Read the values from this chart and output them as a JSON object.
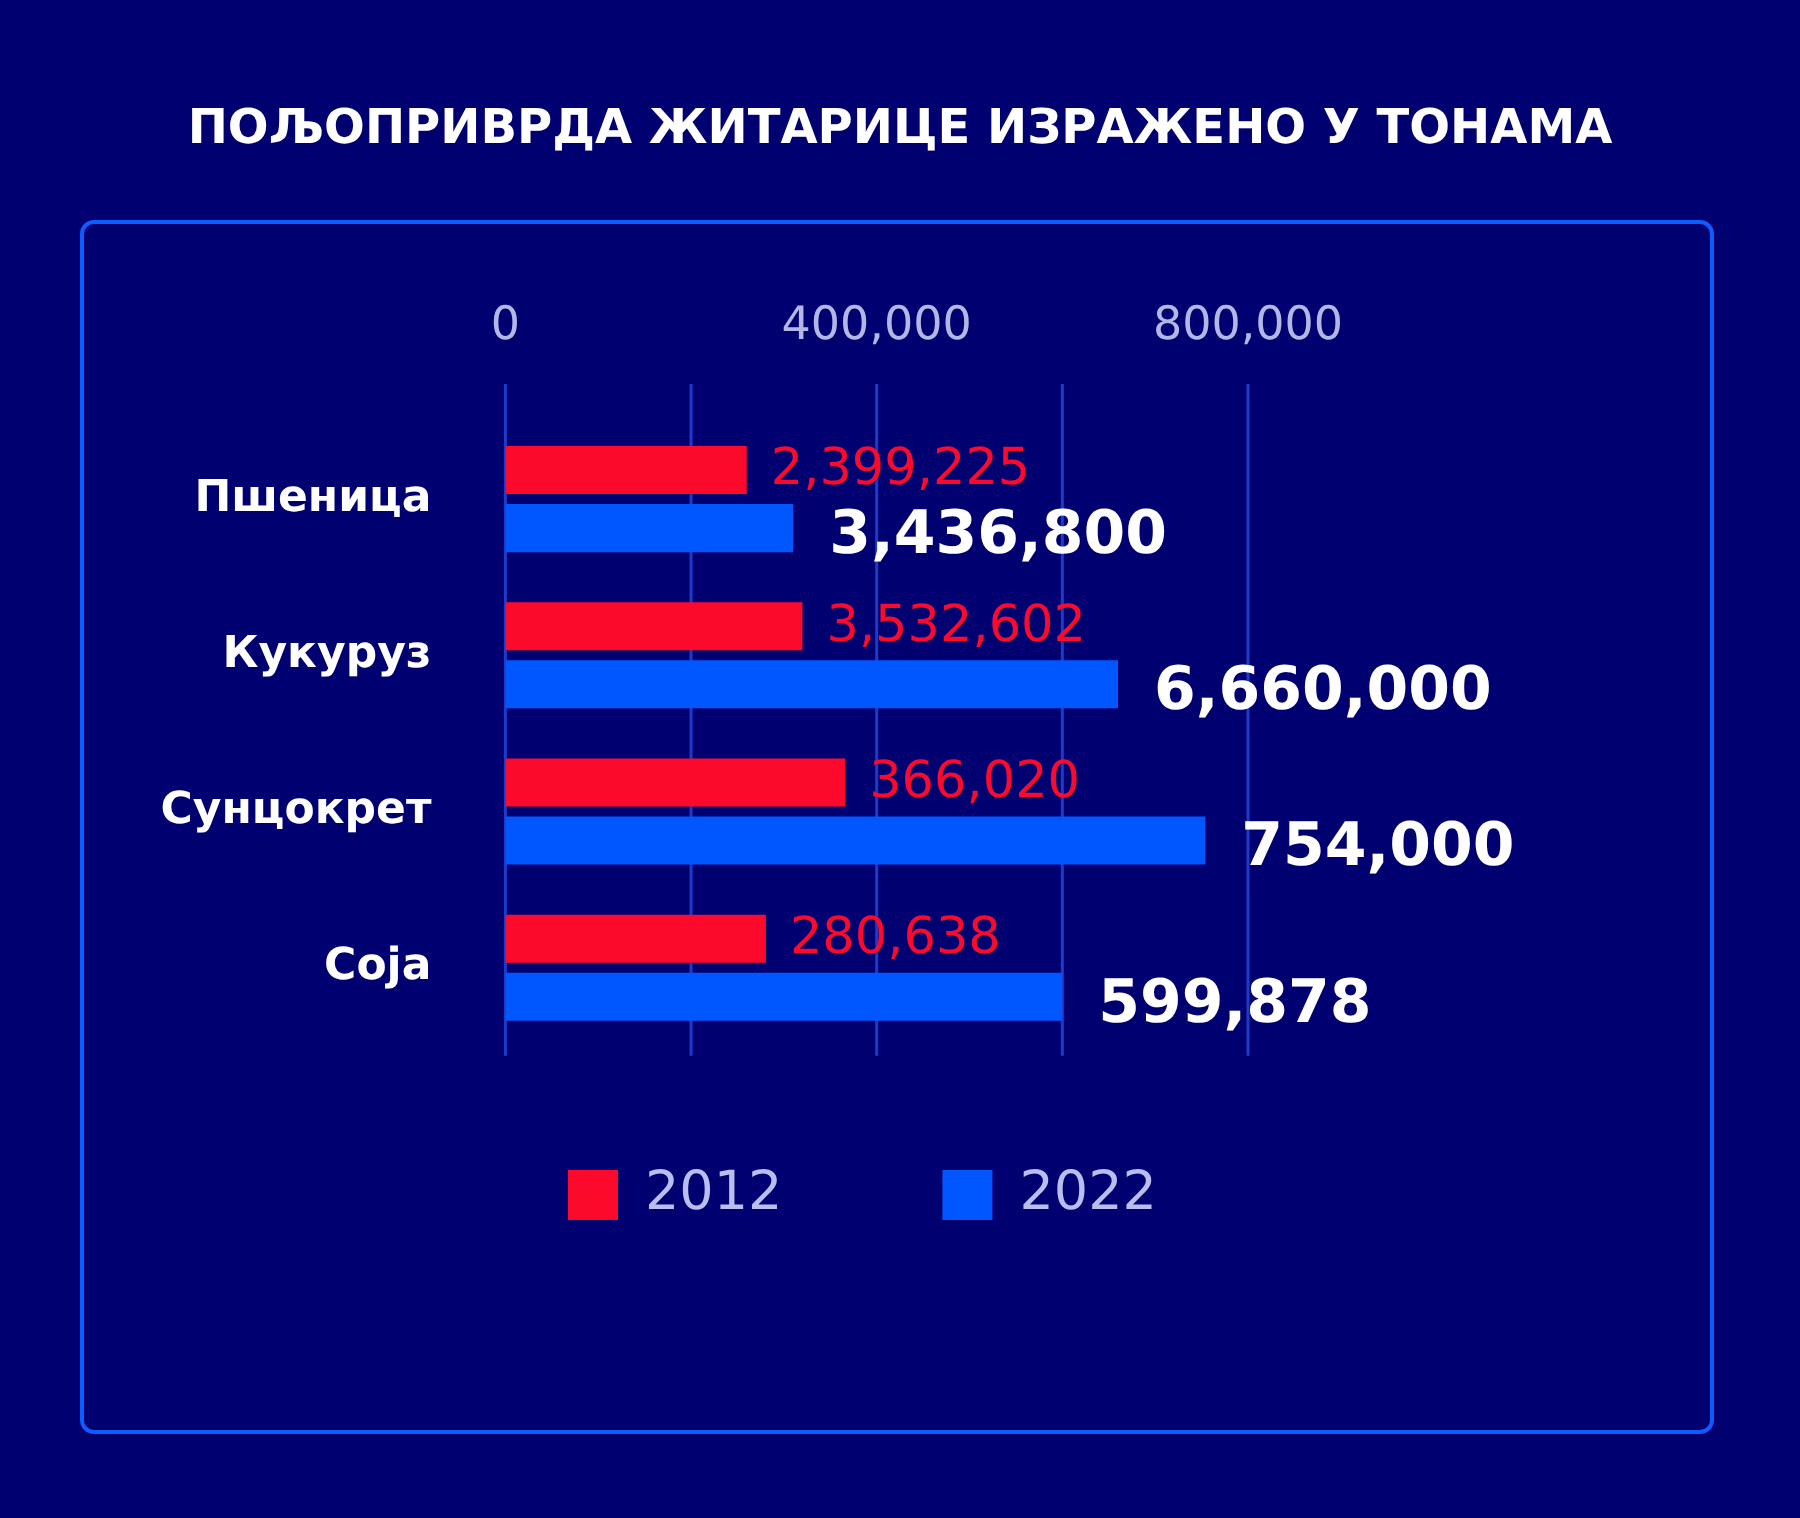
{
  "chart_data": {
    "type": "bar",
    "orientation": "horizontal",
    "title": "ПОЉОПРИВРДА ЖИТАРИЦЕ ИЗРАЖЕНО У ТОНАМА",
    "categories": [
      "Пшеница",
      "Кукуруз",
      "Сунцокрет",
      "Соја"
    ],
    "series": [
      {
        "name": "2012",
        "color": "#fc0a2c",
        "values": [
          260000,
          320000,
          366020,
          280638
        ],
        "value_labels": [
          null,
          null,
          "366,020",
          "280,638"
        ]
      },
      {
        "name": "2022",
        "color": "#0057ff",
        "values": [
          310000,
          660000,
          754000,
          599878
        ],
        "value_labels": [
          null,
          null,
          "754,000",
          "599,878"
        ]
      }
    ],
    "annotations": [
      {
        "text": "2,399,225",
        "x": 260000,
        "y": "Пшеница"
      },
      {
        "text": "3,436,800",
        "x": 310000,
        "y": "Пшеница"
      },
      {
        "text": "3,532,602",
        "x": 320000,
        "y": "Кукуруз"
      },
      {
        "text": "6,660,000",
        "x": 660000,
        "y": "Кукуруз"
      }
    ],
    "xlim": [
      0,
      800000
    ],
    "xticks": [
      0,
      {
        "value": 200000,
        "label": null
      },
      {
        "value": 400000,
        "label": "400,000"
      },
      {
        "value": 600000,
        "label": null
      },
      {
        "value": 800000,
        "label": "800,000"
      }
    ],
    "grid": "x",
    "legend": "bottom"
  }
}
